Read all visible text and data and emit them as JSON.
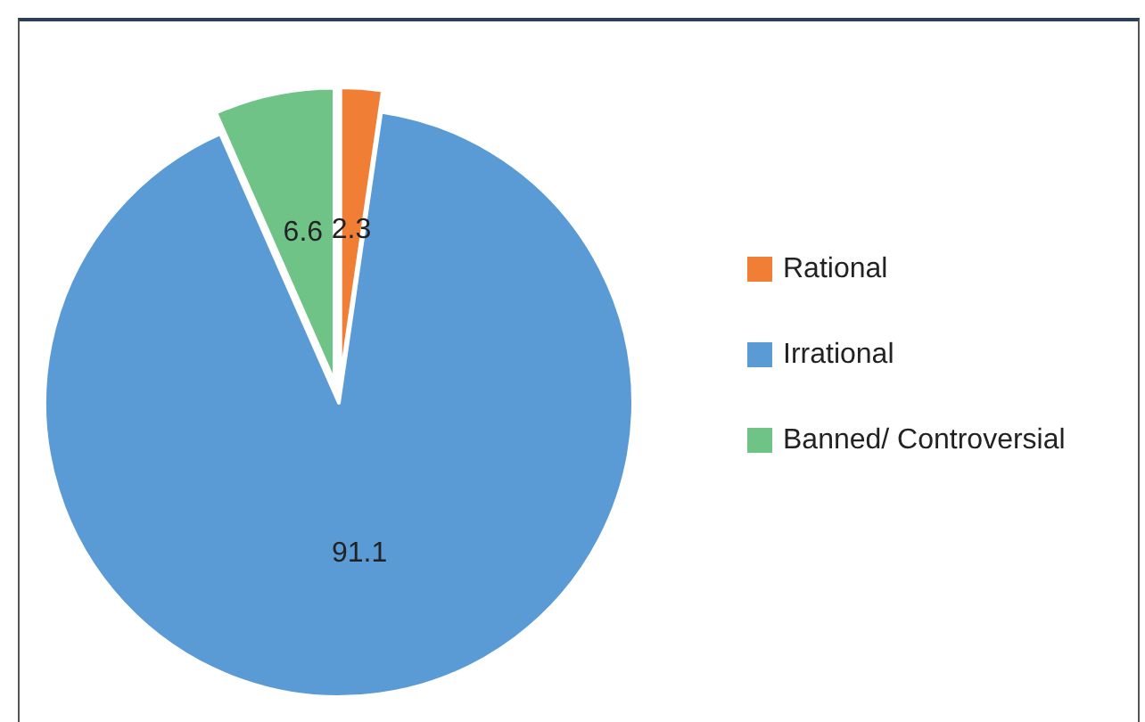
{
  "chart_data": {
    "type": "pie",
    "categories": [
      "Rational",
      "Irrational",
      "Banned/ Controversial"
    ],
    "values": [
      2.3,
      91.1,
      6.6
    ],
    "colors": [
      "#f07f35",
      "#5b9bd5",
      "#70c387"
    ],
    "data_labels": true,
    "legend": "right"
  }
}
